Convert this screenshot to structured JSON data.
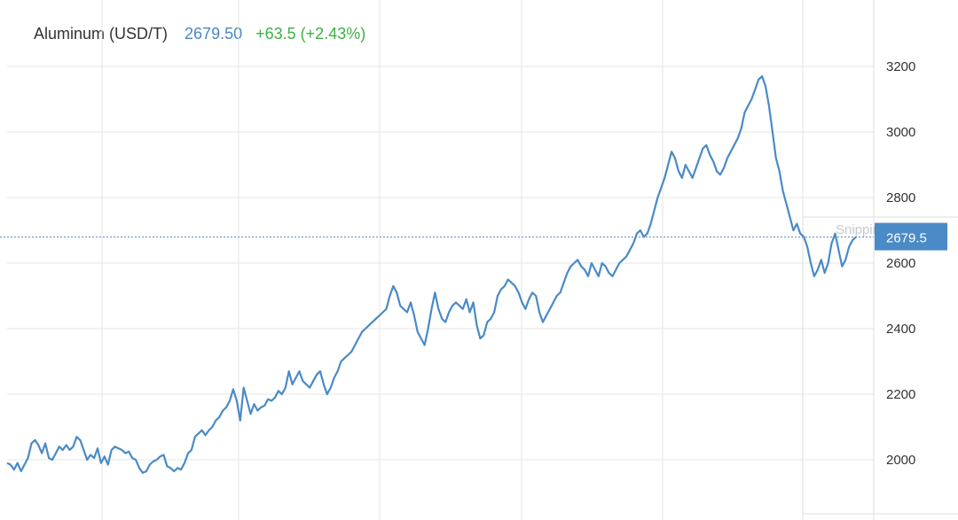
{
  "header": {
    "name": "Aluminum (USD/T)",
    "price": "2679.50",
    "change": "+63.5 (+2.43%)"
  },
  "watermark": "Snipping Tool",
  "colors": {
    "line": "#4a8ac6",
    "grid": "#e6e6e6",
    "last_label_bg": "#4a8ac6",
    "price_text": "#4a86c5",
    "change_text": "#3cb043"
  },
  "chart_data": {
    "type": "line",
    "title": "Aluminum (USD/T)",
    "last_value_label": "2679.5",
    "y_ticks": [
      2000,
      2200,
      2400,
      2600,
      2800,
      3000,
      3200
    ],
    "ylim": [
      1940,
      3280
    ],
    "grid": true,
    "series": [
      {
        "values": [
          1990,
          1985,
          1970,
          1990,
          1965,
          1985,
          2005,
          2050,
          2060,
          2045,
          2020,
          2050,
          2005,
          2000,
          2020,
          2040,
          2030,
          2045,
          2030,
          2040,
          2070,
          2060,
          2030,
          2000,
          2015,
          2005,
          2035,
          1990,
          2010,
          1985,
          2030,
          2040,
          2035,
          2030,
          2020,
          2025,
          2005,
          2000,
          1975,
          1960,
          1965,
          1985,
          1995,
          2000,
          2010,
          2015,
          1980,
          1975,
          1965,
          1975,
          1970,
          1990,
          2020,
          2030,
          2070,
          2080,
          2090,
          2075,
          2090,
          2100,
          2120,
          2130,
          2150,
          2160,
          2180,
          2215,
          2180,
          2120,
          2220,
          2180,
          2140,
          2170,
          2150,
          2160,
          2165,
          2185,
          2180,
          2190,
          2210,
          2200,
          2220,
          2270,
          2230,
          2250,
          2270,
          2240,
          2230,
          2220,
          2240,
          2260,
          2270,
          2230,
          2200,
          2220,
          2250,
          2270,
          2300,
          2310,
          2320,
          2330,
          2350,
          2370,
          2390,
          2400,
          2410,
          2420,
          2430,
          2440,
          2450,
          2460,
          2500,
          2530,
          2510,
          2470,
          2460,
          2450,
          2480,
          2440,
          2390,
          2370,
          2350,
          2400,
          2460,
          2510,
          2460,
          2430,
          2420,
          2450,
          2470,
          2480,
          2470,
          2460,
          2490,
          2450,
          2480,
          2410,
          2370,
          2380,
          2420,
          2430,
          2450,
          2500,
          2520,
          2530,
          2550,
          2540,
          2530,
          2510,
          2480,
          2460,
          2490,
          2510,
          2500,
          2450,
          2420,
          2440,
          2460,
          2480,
          2500,
          2510,
          2540,
          2570,
          2590,
          2600,
          2610,
          2590,
          2580,
          2560,
          2600,
          2580,
          2560,
          2600,
          2590,
          2570,
          2560,
          2580,
          2600,
          2610,
          2620,
          2640,
          2660,
          2690,
          2700,
          2680,
          2690,
          2720,
          2760,
          2800,
          2830,
          2860,
          2900,
          2940,
          2920,
          2880,
          2860,
          2900,
          2880,
          2860,
          2890,
          2920,
          2950,
          2960,
          2930,
          2910,
          2880,
          2870,
          2890,
          2920,
          2940,
          2960,
          2980,
          3010,
          3060,
          3080,
          3100,
          3130,
          3160,
          3170,
          3140,
          3080,
          3000,
          2920,
          2880,
          2820,
          2780,
          2740,
          2700,
          2720,
          2690,
          2680,
          2650,
          2600,
          2560,
          2580,
          2610,
          2570,
          2600,
          2660,
          2690,
          2640,
          2590,
          2610,
          2650,
          2670,
          2679.5
        ]
      }
    ]
  }
}
